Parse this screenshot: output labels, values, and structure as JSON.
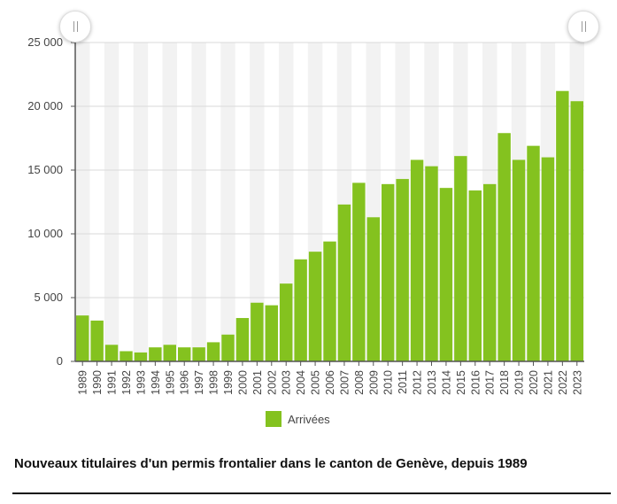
{
  "chart_data": {
    "type": "bar",
    "categories": [
      "1989",
      "1990",
      "1991",
      "1992",
      "1993",
      "1994",
      "1995",
      "1996",
      "1997",
      "1998",
      "1999",
      "2000",
      "2001",
      "2002",
      "2003",
      "2004",
      "2005",
      "2006",
      "2007",
      "2008",
      "2009",
      "2010",
      "2011",
      "2012",
      "2013",
      "2014",
      "2015",
      "2016",
      "2017",
      "2018",
      "2019",
      "2020",
      "2021",
      "2022",
      "2023"
    ],
    "series": [
      {
        "name": "Arrivées",
        "values": [
          3600,
          3200,
          1300,
          800,
          700,
          1100,
          1300,
          1100,
          1100,
          1500,
          2100,
          3400,
          4600,
          4400,
          6100,
          8000,
          8600,
          9400,
          12300,
          14000,
          11300,
          13900,
          14300,
          15800,
          15300,
          13600,
          16100,
          13400,
          13900,
          17900,
          15800,
          16900,
          16000,
          21200,
          20400
        ]
      }
    ],
    "ylim": [
      0,
      25000
    ],
    "yticks": [
      0,
      5000,
      10000,
      15000,
      20000,
      25000
    ],
    "ytick_labels": [
      "0",
      "5 000",
      "10 000",
      "15 000",
      "20 000",
      "25 000"
    ],
    "grid": true,
    "legend_position": "bottom-center",
    "colors": {
      "bar": "#84c21f",
      "bar_edge": "#6aa114",
      "axis": "#555555",
      "grid": "#d9d9d9",
      "band": "#f2f2f2"
    }
  },
  "legend": {
    "label": "Arrivées"
  },
  "caption": "Nouveaux titulaires d'un permis frontalier dans le canton de Genève, depuis 1989",
  "range_handles": {
    "left_icon": "slider-handle-icon",
    "right_icon": "slider-handle-icon"
  }
}
